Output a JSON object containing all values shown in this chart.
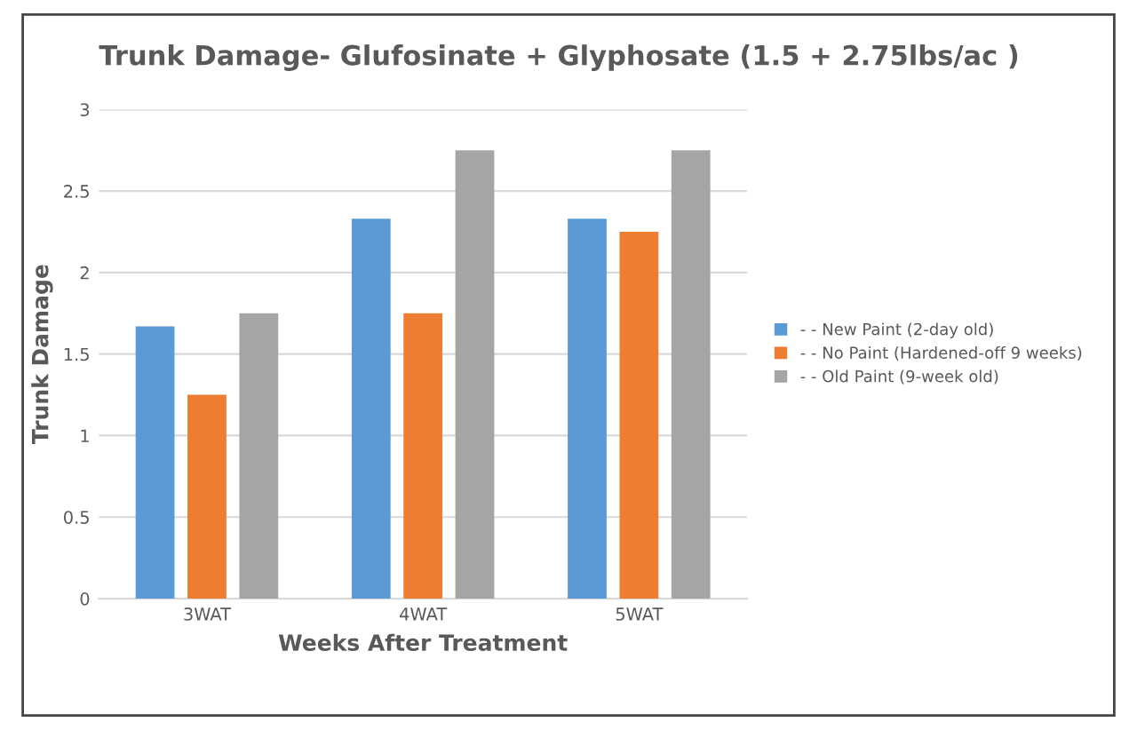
{
  "chart_data": {
    "type": "bar",
    "title": "Trunk Damage- Glufosinate + Glyphosate (1.5 + 2.75lbs/ac )",
    "xlabel": "Weeks After Treatment",
    "ylabel": "Trunk Damage",
    "categories": [
      "3WAT",
      "4WAT",
      "5WAT"
    ],
    "series": [
      {
        "name": "- - New Paint (2-day old)",
        "color": "#5b9bd5",
        "values": [
          1.67,
          2.33,
          2.33
        ]
      },
      {
        "name": "- - No Paint (Hardened-off 9 weeks)",
        "color": "#ed7d31",
        "values": [
          1.25,
          1.75,
          2.25
        ]
      },
      {
        "name": "- - Old Paint (9-week old)",
        "color": "#a5a5a5",
        "values": [
          1.75,
          2.75,
          2.75
        ]
      }
    ],
    "ylim": [
      0,
      3
    ],
    "yticks": [
      0,
      0.5,
      1,
      1.5,
      2,
      2.5,
      3
    ],
    "grid": "y",
    "legend": "right"
  }
}
